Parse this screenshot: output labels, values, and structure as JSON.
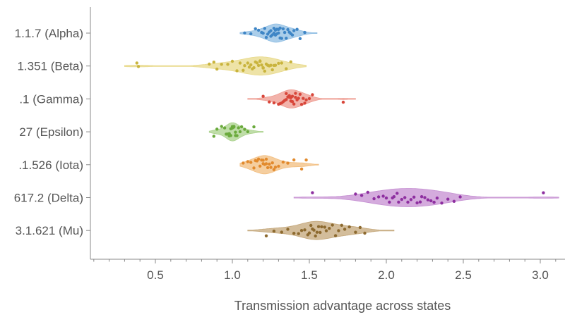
{
  "chart_data": {
    "type": "violin-scatter",
    "title": "",
    "xlabel": "Transmission advantage across states",
    "ylabel": "",
    "xlim": [
      0.1,
      3.1
    ],
    "xticks": [
      0.5,
      1.0,
      1.5,
      2.0,
      2.5,
      3.0
    ],
    "xtick_labels": [
      "0.5",
      "1.0",
      "1.5",
      "2.0",
      "2.5",
      "3.0"
    ],
    "grid": false,
    "legend": "none",
    "categories": [
      "1.1.7 (Alpha)",
      "1.351 (Beta)",
      ".1 (Gamma)",
      "27 (Epsilon)",
      ".1.526 (Iota)",
      "617.2 (Delta)",
      "3.1.621 (Mu)"
    ],
    "series": [
      {
        "name": "1.1.7 (Alpha)",
        "color": "#3f86c6",
        "fill": "#8fbde3",
        "min": 1.05,
        "max": 1.55,
        "center": 1.28,
        "points": [
          1.08,
          1.12,
          1.15,
          1.17,
          1.19,
          1.2,
          1.21,
          1.22,
          1.23,
          1.24,
          1.25,
          1.25,
          1.26,
          1.27,
          1.27,
          1.28,
          1.28,
          1.29,
          1.29,
          1.3,
          1.3,
          1.31,
          1.31,
          1.32,
          1.33,
          1.34,
          1.35,
          1.36,
          1.37,
          1.38,
          1.39,
          1.4,
          1.42,
          1.44,
          1.47
        ]
      },
      {
        "name": "1.351 (Beta)",
        "color": "#c9b43d",
        "fill": "#e8d98a",
        "min": 0.3,
        "max": 1.48,
        "center": 1.18,
        "points": [
          0.38,
          0.39,
          0.85,
          0.88,
          0.9,
          0.93,
          0.97,
          1.0,
          1.03,
          1.05,
          1.07,
          1.08,
          1.1,
          1.11,
          1.12,
          1.13,
          1.14,
          1.15,
          1.16,
          1.17,
          1.18,
          1.18,
          1.19,
          1.2,
          1.2,
          1.21,
          1.22,
          1.23,
          1.24,
          1.25,
          1.26,
          1.27,
          1.28,
          1.3,
          1.32,
          1.35,
          1.38
        ]
      },
      {
        "name": ".1 (Gamma)",
        "color": "#d8463a",
        "fill": "#ee9a8f",
        "min": 1.1,
        "max": 1.8,
        "center": 1.38,
        "points": [
          1.2,
          1.24,
          1.27,
          1.3,
          1.31,
          1.32,
          1.33,
          1.34,
          1.35,
          1.35,
          1.36,
          1.37,
          1.37,
          1.38,
          1.38,
          1.39,
          1.39,
          1.4,
          1.41,
          1.41,
          1.42,
          1.43,
          1.44,
          1.45,
          1.46,
          1.47,
          1.48,
          1.5,
          1.52,
          1.72
        ]
      },
      {
        "name": "27 (Epsilon)",
        "color": "#6aaa3c",
        "fill": "#a9d18b",
        "min": 0.85,
        "max": 1.2,
        "center": 1.0,
        "points": [
          0.88,
          0.9,
          0.93,
          0.95,
          0.96,
          0.97,
          0.98,
          0.98,
          0.99,
          0.99,
          1.0,
          1.0,
          1.01,
          1.01,
          1.02,
          1.02,
          1.03,
          1.04,
          1.05,
          1.06,
          1.08,
          1.1,
          1.14
        ]
      },
      {
        "name": ".1.526 (Iota)",
        "color": "#e28a2d",
        "fill": "#f2bd7f",
        "min": 1.05,
        "max": 1.56,
        "center": 1.22,
        "points": [
          1.07,
          1.1,
          1.12,
          1.14,
          1.15,
          1.16,
          1.17,
          1.18,
          1.19,
          1.2,
          1.2,
          1.21,
          1.22,
          1.22,
          1.23,
          1.24,
          1.25,
          1.26,
          1.27,
          1.28,
          1.3,
          1.33,
          1.36,
          1.4,
          1.45,
          1.48
        ]
      },
      {
        "name": "617.2 (Delta)",
        "color": "#8e2fa0",
        "fill": "#c58fd2",
        "min": 1.4,
        "max": 3.12,
        "center": 2.15,
        "points": [
          1.52,
          1.8,
          1.84,
          1.88,
          1.92,
          1.95,
          1.98,
          2.0,
          2.02,
          2.04,
          2.05,
          2.07,
          2.08,
          2.1,
          2.12,
          2.14,
          2.16,
          2.18,
          2.2,
          2.22,
          2.23,
          2.25,
          2.27,
          2.29,
          2.31,
          2.33,
          2.36,
          2.4,
          2.44,
          2.48,
          3.02
        ]
      },
      {
        "name": "3.1.621 (Mu)",
        "color": "#8d6a2f",
        "fill": "#c4a77a",
        "min": 1.1,
        "max": 2.05,
        "center": 1.55,
        "points": [
          1.22,
          1.27,
          1.32,
          1.36,
          1.4,
          1.43,
          1.45,
          1.47,
          1.49,
          1.5,
          1.51,
          1.52,
          1.53,
          1.54,
          1.55,
          1.56,
          1.57,
          1.58,
          1.6,
          1.61,
          1.63,
          1.65,
          1.67,
          1.69,
          1.71,
          1.73,
          1.76,
          1.8,
          1.83,
          1.86
        ]
      }
    ]
  }
}
